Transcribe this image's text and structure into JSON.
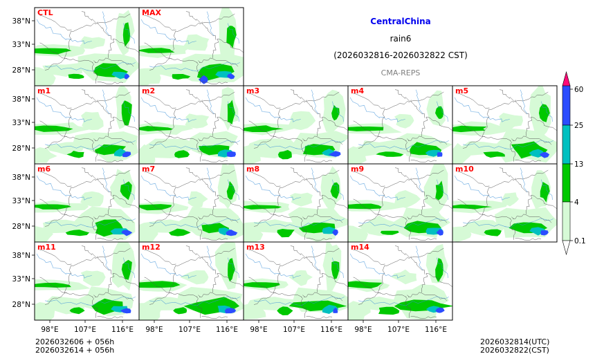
{
  "title": {
    "region": "CentralChina",
    "variable": "rain6",
    "period": "(2026032816-2026032822 CST)",
    "model": "CMA-REPS"
  },
  "colors": {
    "region_title": "#0000ee",
    "model_label": "#808080",
    "panel_label": "#ff0000",
    "bin_0_1": "#d6fad6",
    "bin_4": "#00c800",
    "bin_13": "#00c0c0",
    "bin_25": "#2b4cff",
    "bin_60": "#ff0a78",
    "river": "#3a8fd8",
    "border": "#555555"
  },
  "panels": [
    {
      "label": "CTL"
    },
    {
      "label": "MAX"
    },
    {
      "label": "m1"
    },
    {
      "label": "m2"
    },
    {
      "label": "m3"
    },
    {
      "label": "m4"
    },
    {
      "label": "m5"
    },
    {
      "label": "m6"
    },
    {
      "label": "m7"
    },
    {
      "label": "m8"
    },
    {
      "label": "m9"
    },
    {
      "label": "m10"
    },
    {
      "label": "m11"
    },
    {
      "label": "m12"
    },
    {
      "label": "m13"
    },
    {
      "label": "m14"
    }
  ],
  "axes": {
    "lat_ticks": [
      "38°N",
      "33°N",
      "28°N"
    ],
    "lon_ticks": [
      "98°E",
      "107°E",
      "116°E"
    ]
  },
  "colorbar": {
    "levels": [
      "0.1",
      "4",
      "13",
      "25",
      "60"
    ]
  },
  "footer": {
    "init_utc": "2026032606  +  056h",
    "init_cst": "2026032614  +  056h",
    "valid_utc": "2026032814(UTC)",
    "valid_cst": "2026032822(CST)"
  }
}
